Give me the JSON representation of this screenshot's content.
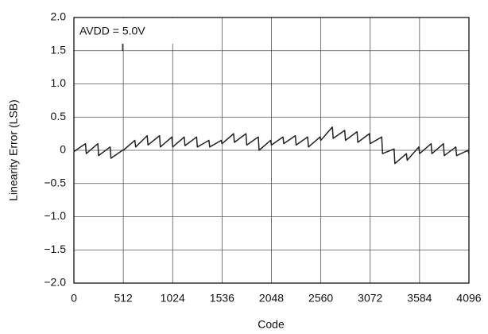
{
  "chart_data": {
    "type": "line",
    "x_label": "Code",
    "y_label": "Linearity Error (LSB)",
    "annotation": "AVDD = 5.0V",
    "x": [
      0,
      120,
      128,
      248,
      256,
      376,
      384,
      504,
      512,
      632,
      640,
      760,
      768,
      888,
      896,
      1016,
      1024,
      1144,
      1152,
      1272,
      1280,
      1400,
      1408,
      1528,
      1536,
      1656,
      1664,
      1784,
      1792,
      1912,
      1920,
      2040,
      2048,
      2168,
      2176,
      2296,
      2304,
      2424,
      2432,
      2552,
      2560,
      2680,
      2688,
      2808,
      2816,
      2936,
      2944,
      3064,
      3072,
      3192,
      3200,
      3320,
      3328,
      3448,
      3456,
      3576,
      3584,
      3704,
      3712,
      3832,
      3840,
      3960,
      3968,
      4088,
      4095
    ],
    "series": [
      {
        "color": "#222222",
        "values": [
          -0.02,
          0.1,
          -0.05,
          0.1,
          -0.08,
          0.05,
          -0.12,
          0.0,
          0.0,
          0.15,
          0.05,
          0.22,
          0.08,
          0.22,
          0.05,
          0.2,
          0.05,
          0.2,
          0.07,
          0.2,
          0.05,
          0.15,
          0.05,
          0.15,
          0.1,
          0.25,
          0.12,
          0.25,
          0.08,
          0.2,
          0.0,
          0.15,
          0.08,
          0.2,
          0.1,
          0.22,
          0.08,
          0.2,
          0.05,
          0.2,
          0.15,
          0.35,
          0.18,
          0.3,
          0.15,
          0.28,
          0.12,
          0.25,
          0.1,
          0.2,
          -0.05,
          0.02,
          -0.2,
          -0.05,
          -0.15,
          0.05,
          -0.05,
          0.1,
          -0.05,
          0.1,
          -0.08,
          0.05,
          -0.08,
          0.0,
          -0.05
        ]
      }
    ],
    "xlim": [
      0,
      4096
    ],
    "xticks": [
      0,
      512,
      1024,
      1536,
      2048,
      2560,
      3072,
      3584,
      4096
    ],
    "ylim": [
      -2,
      2
    ],
    "yticks": [
      {
        "value": -2,
        "label": "−2.0"
      },
      {
        "value": -1.5,
        "label": "−1.5"
      },
      {
        "value": -1,
        "label": "−1.0"
      },
      {
        "value": -0.5,
        "label": "−0.5"
      },
      0,
      {
        "value": 0.5,
        "label": "0.5"
      },
      {
        "value": 1,
        "label": "1.0"
      },
      {
        "value": 1.5,
        "label": "1.5"
      },
      {
        "value": 2,
        "label": "2.0"
      }
    ],
    "grid": true
  }
}
